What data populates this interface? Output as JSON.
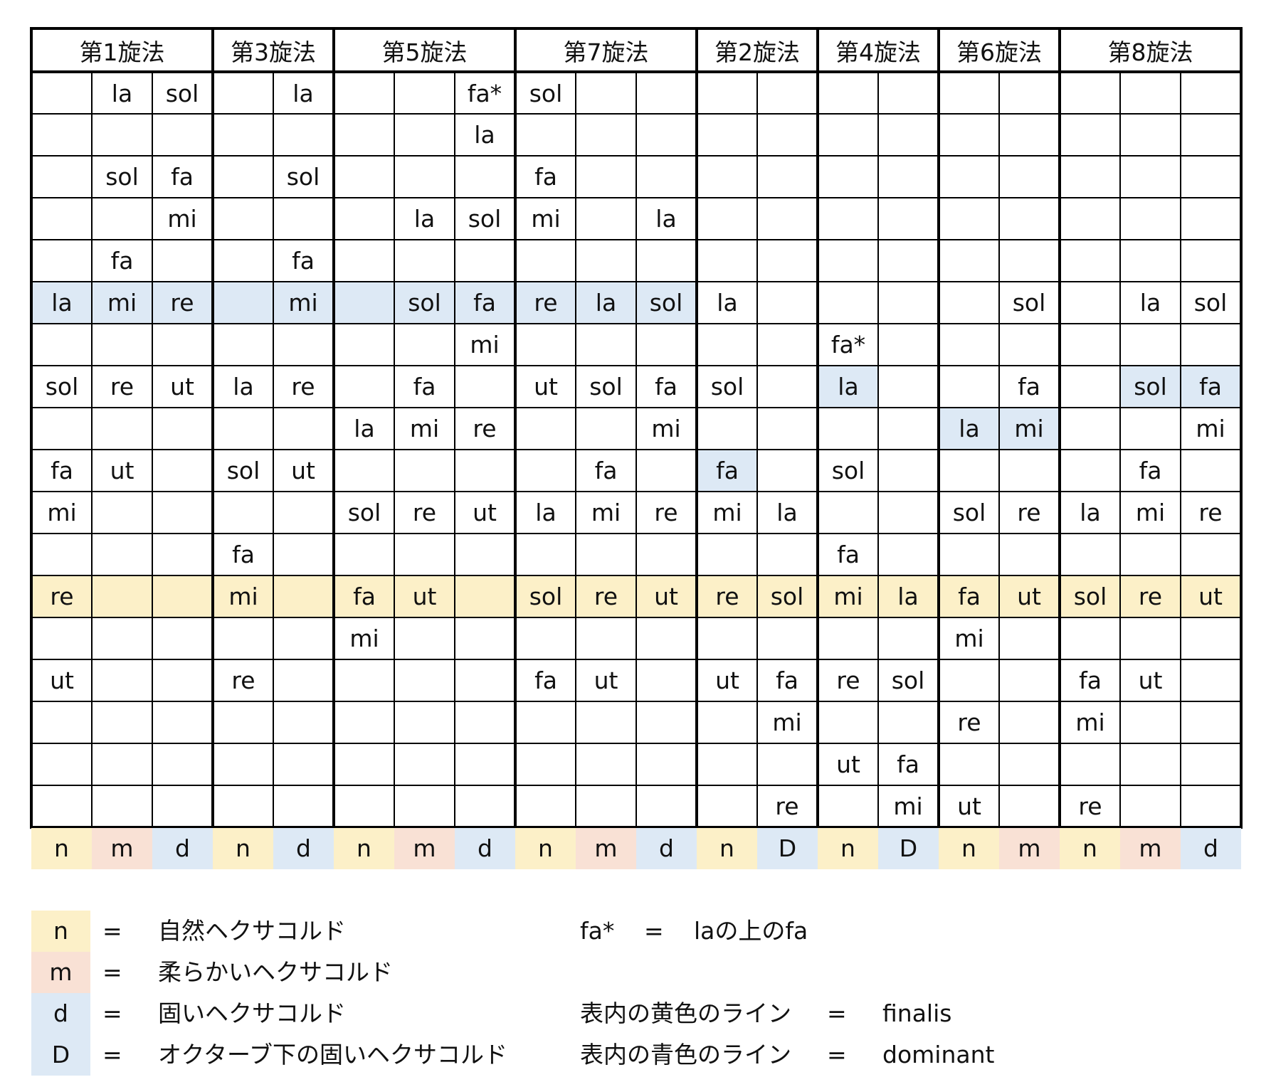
{
  "colors": {
    "dominant": "#dde9f5",
    "finalis": "#fcf0c8",
    "n": "#fcf0c8",
    "m": "#f9e1d5",
    "d": "#dde9f5",
    "D": "#dde9f5"
  },
  "groups": [
    {
      "label": "第1旋法",
      "span": 3
    },
    {
      "label": "第3旋法",
      "span": 2
    },
    {
      "label": "第5旋法",
      "span": 3
    },
    {
      "label": "第7旋法",
      "span": 3
    },
    {
      "label": "第2旋法",
      "span": 2
    },
    {
      "label": "第4旋法",
      "span": 2
    },
    {
      "label": "第6旋法",
      "span": 2
    },
    {
      "label": "第8旋法",
      "span": 3
    }
  ],
  "rows": [
    [
      "",
      "la",
      "sol",
      "",
      "la",
      "",
      "",
      "fa*",
      "sol",
      "",
      "",
      "",
      "",
      "",
      "",
      "",
      "",
      "",
      "",
      ""
    ],
    [
      "",
      "",
      "",
      "",
      "",
      "",
      "",
      "la",
      "",
      "",
      "",
      "",
      "",
      "",
      "",
      "",
      "",
      "",
      "",
      ""
    ],
    [
      "",
      "sol",
      "fa",
      "",
      "sol",
      "",
      "",
      "",
      "fa",
      "",
      "",
      "",
      "",
      "",
      "",
      "",
      "",
      "",
      "",
      ""
    ],
    [
      "",
      "",
      "mi",
      "",
      "",
      "",
      "la",
      "sol",
      "mi",
      "",
      "la",
      "",
      "",
      "",
      "",
      "",
      "",
      "",
      "",
      ""
    ],
    [
      "",
      "fa",
      "",
      "",
      "fa",
      "",
      "",
      "",
      "",
      "",
      "",
      "",
      "",
      "",
      "",
      "",
      "",
      "",
      "",
      ""
    ],
    [
      "la",
      "mi",
      "re",
      "",
      "mi",
      "",
      "sol",
      "fa",
      "re",
      "la",
      "sol",
      "la",
      "",
      "",
      "",
      "",
      "sol",
      "",
      "la",
      "sol"
    ],
    [
      "",
      "",
      "",
      "",
      "",
      "",
      "",
      "mi",
      "",
      "",
      "",
      "",
      "",
      "fa*",
      "",
      "",
      "",
      "",
      "",
      ""
    ],
    [
      "sol",
      "re",
      "ut",
      "la",
      "re",
      "",
      "fa",
      "",
      "ut",
      "sol",
      "fa",
      "sol",
      "",
      "la",
      "",
      "",
      "fa",
      "",
      "sol",
      "fa"
    ],
    [
      "",
      "",
      "",
      "",
      "",
      "la",
      "mi",
      "re",
      "",
      "",
      "mi",
      "",
      "",
      "",
      "",
      "la",
      "mi",
      "",
      "",
      "mi"
    ],
    [
      "fa",
      "ut",
      "",
      "sol",
      "ut",
      "",
      "",
      "",
      "",
      "fa",
      "",
      "fa",
      "",
      "sol",
      "",
      "",
      "",
      "",
      "fa",
      ""
    ],
    [
      "mi",
      "",
      "",
      "",
      "",
      "sol",
      "re",
      "ut",
      "la",
      "mi",
      "re",
      "mi",
      "la",
      "",
      "",
      "sol",
      "re",
      "la",
      "mi",
      "re"
    ],
    [
      "",
      "",
      "",
      "fa",
      "",
      "",
      "",
      "",
      "",
      "",
      "",
      "",
      "",
      "fa",
      "",
      "",
      "",
      "",
      "",
      ""
    ],
    [
      "re",
      "",
      "",
      "mi",
      "",
      "fa",
      "ut",
      "",
      "sol",
      "re",
      "ut",
      "re",
      "sol",
      "mi",
      "la",
      "fa",
      "ut",
      "sol",
      "re",
      "ut"
    ],
    [
      "",
      "",
      "",
      "",
      "",
      "mi",
      "",
      "",
      "",
      "",
      "",
      "",
      "",
      "",
      "",
      "mi",
      "",
      "",
      "",
      ""
    ],
    [
      "ut",
      "",
      "",
      "re",
      "",
      "",
      "",
      "",
      "fa",
      "ut",
      "",
      "ut",
      "fa",
      "re",
      "sol",
      "",
      "",
      "fa",
      "ut",
      ""
    ],
    [
      "",
      "",
      "",
      "",
      "",
      "",
      "",
      "",
      "",
      "",
      "",
      "",
      "mi",
      "",
      "",
      "re",
      "",
      "mi",
      "",
      ""
    ],
    [
      "",
      "",
      "",
      "",
      "",
      "",
      "",
      "",
      "",
      "",
      "",
      "",
      "",
      "ut",
      "fa",
      "",
      "",
      "",
      "",
      ""
    ],
    [
      "",
      "",
      "",
      "",
      "",
      "",
      "",
      "",
      "",
      "",
      "",
      "",
      "re",
      "",
      "mi",
      "ut",
      "",
      "re",
      "",
      ""
    ]
  ],
  "highlights": [
    {
      "row": 5,
      "cols": [
        0,
        1,
        2,
        3,
        4,
        5,
        6,
        7,
        8,
        9,
        10
      ],
      "type": "dominant"
    },
    {
      "row": 7,
      "cols": [
        13,
        18,
        19
      ],
      "type": "dominant"
    },
    {
      "row": 8,
      "cols": [
        15,
        16
      ],
      "type": "dominant"
    },
    {
      "row": 9,
      "cols": [
        11
      ],
      "type": "dominant"
    },
    {
      "row": 12,
      "cols": [
        0,
        1,
        2,
        3,
        4,
        5,
        6,
        7,
        8,
        9,
        10,
        11,
        12,
        13,
        14,
        15,
        16,
        17,
        18,
        19
      ],
      "type": "finalis"
    }
  ],
  "hexachord_codes": [
    "n",
    "m",
    "d",
    "n",
    "d",
    "n",
    "m",
    "d",
    "n",
    "m",
    "d",
    "n",
    "D",
    "n",
    "D",
    "n",
    "m",
    "n",
    "m",
    "d"
  ],
  "legend": {
    "equals": "=",
    "keys": [
      {
        "key": "n",
        "text": "自然ヘクサコルド"
      },
      {
        "key": "m",
        "text": "柔らかいヘクサコルド"
      },
      {
        "key": "d",
        "text": "固いヘクサコルド"
      },
      {
        "key": "D",
        "text": "オクターブ下の固いヘクサコルド"
      }
    ],
    "notes": [
      {
        "term": "fa*",
        "text": "laの上のfa"
      },
      {
        "term": "表内の黄色のライン",
        "text": "finalis"
      },
      {
        "term": "表内の青色のライン",
        "text": "dominant"
      }
    ]
  }
}
